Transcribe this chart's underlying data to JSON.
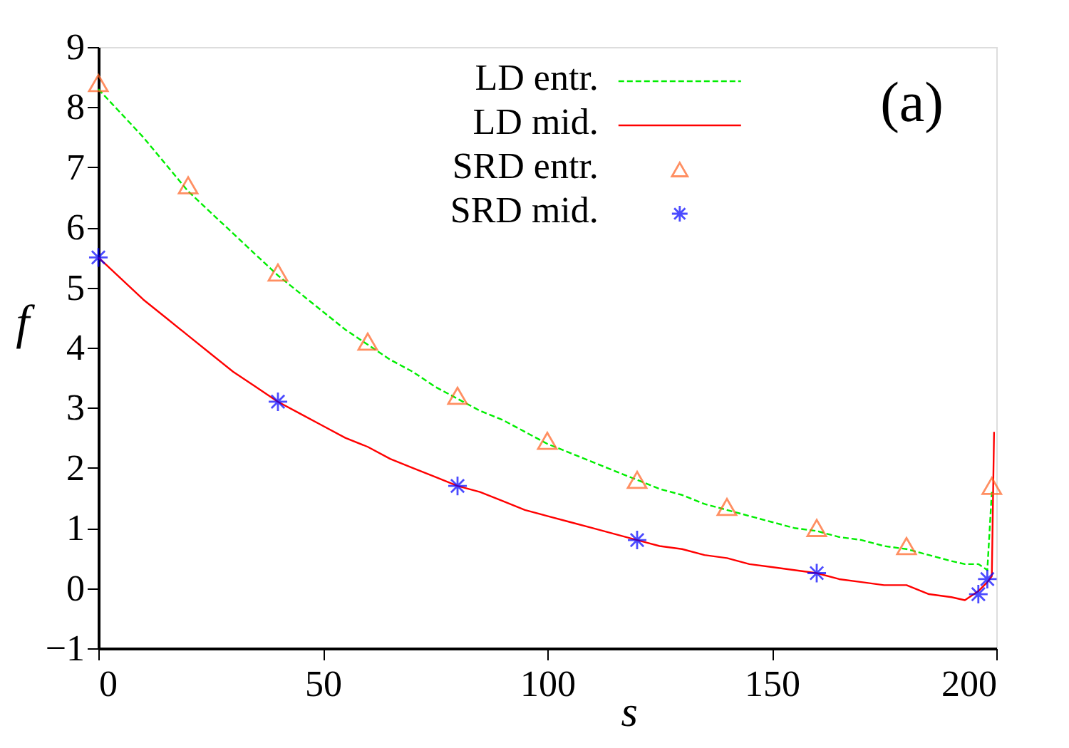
{
  "chart_data": {
    "type": "line",
    "xlabel": "s",
    "ylabel": "f",
    "xlim": [
      0,
      200
    ],
    "ylim": [
      -1,
      9
    ],
    "xticks": [
      0,
      50,
      100,
      150,
      200
    ],
    "yticks": [
      -1,
      0,
      1,
      2,
      3,
      4,
      5,
      6,
      7,
      8,
      9
    ],
    "grid": false,
    "legend": "top right",
    "annotations": [
      "(a)"
    ],
    "series": [
      {
        "name": "LD   entr.",
        "color": "#00ee00",
        "line_style": "dashed",
        "marker": "none",
        "x": [
          0,
          5,
          10,
          15,
          20,
          25,
          30,
          35,
          40,
          45,
          50,
          55,
          60,
          65,
          70,
          75,
          80,
          85,
          90,
          95,
          100,
          105,
          110,
          115,
          120,
          125,
          130,
          135,
          140,
          145,
          150,
          155,
          160,
          165,
          170,
          175,
          180,
          185,
          190,
          193,
          196,
          198,
          199
        ],
        "values": [
          8.3,
          7.9,
          7.5,
          7.05,
          6.6,
          6.25,
          5.9,
          5.55,
          5.2,
          4.9,
          4.6,
          4.3,
          4.05,
          3.8,
          3.6,
          3.35,
          3.15,
          2.95,
          2.8,
          2.6,
          2.4,
          2.25,
          2.1,
          1.95,
          1.8,
          1.65,
          1.55,
          1.4,
          1.3,
          1.2,
          1.1,
          1.0,
          0.95,
          0.85,
          0.8,
          0.7,
          0.65,
          0.55,
          0.45,
          0.4,
          0.4,
          0.3,
          1.6
        ]
      },
      {
        "name": "LD   mid.",
        "color": "#ff0000",
        "line_style": "solid",
        "marker": "none",
        "x": [
          0,
          5,
          10,
          15,
          20,
          25,
          30,
          35,
          40,
          45,
          50,
          55,
          60,
          65,
          70,
          75,
          80,
          85,
          90,
          95,
          100,
          105,
          110,
          115,
          120,
          125,
          130,
          135,
          140,
          145,
          150,
          155,
          160,
          165,
          170,
          175,
          180,
          185,
          190,
          193,
          196,
          198,
          199,
          199.5
        ],
        "values": [
          5.5,
          5.15,
          4.8,
          4.5,
          4.2,
          3.9,
          3.6,
          3.35,
          3.1,
          2.9,
          2.7,
          2.5,
          2.35,
          2.15,
          2.0,
          1.85,
          1.7,
          1.6,
          1.45,
          1.3,
          1.2,
          1.1,
          1.0,
          0.9,
          0.8,
          0.7,
          0.65,
          0.55,
          0.5,
          0.4,
          0.35,
          0.3,
          0.25,
          0.15,
          0.1,
          0.05,
          0.05,
          -0.1,
          -0.15,
          -0.2,
          -0.05,
          0.1,
          0.2,
          2.6
        ]
      },
      {
        "name": "SRD entr.",
        "type": "scatter",
        "color": "#ff6020",
        "marker": "triangle",
        "x": [
          0,
          20,
          40,
          60,
          80,
          100,
          120,
          140,
          160,
          180,
          199
        ],
        "values": [
          8.4,
          6.7,
          5.25,
          4.1,
          3.2,
          2.45,
          1.8,
          1.35,
          1.0,
          0.7,
          1.7
        ]
      },
      {
        "name": "SRD mid.",
        "type": "scatter",
        "color": "#0000ff",
        "marker": "cross",
        "x": [
          0,
          40,
          80,
          120,
          160,
          196,
          198
        ],
        "values": [
          5.5,
          3.1,
          1.7,
          0.8,
          0.25,
          -0.1,
          0.15
        ]
      }
    ]
  }
}
